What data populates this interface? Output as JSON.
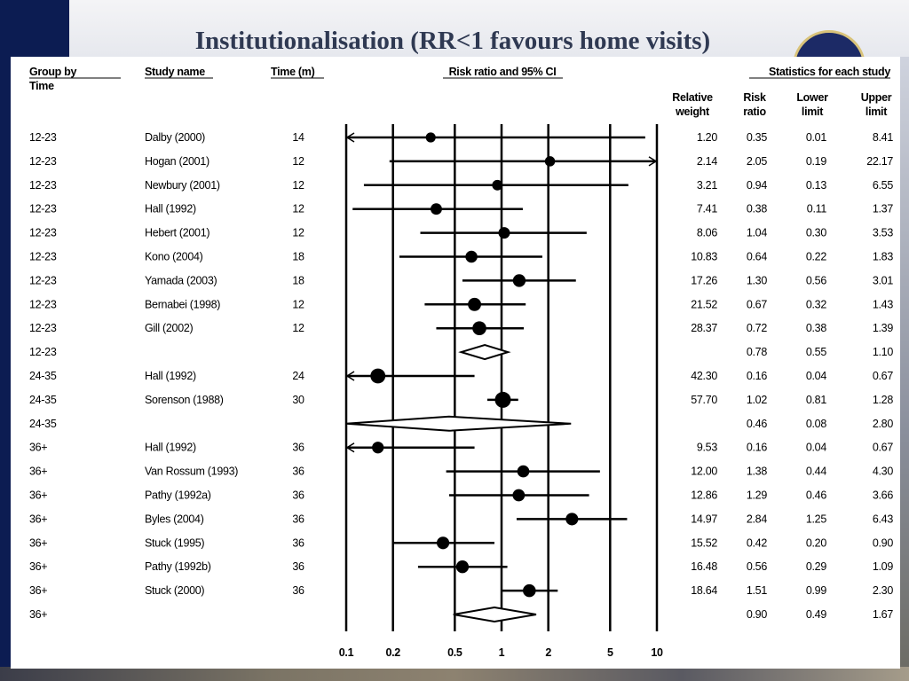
{
  "slide_title": "Institutionalisation (RR<1 favours home visits)",
  "chart_data": {
    "type": "forest",
    "title": "Institutionalisation (RR<1 favours home visits)",
    "scale": "log",
    "xlim": [
      0.1,
      10
    ],
    "x_ticks": [
      "0.1",
      "0.2",
      "0.5",
      "1",
      "2",
      "5",
      "10"
    ],
    "headers": {
      "group": "Group by",
      "group2": "Time",
      "study": "Study name",
      "time": "Time (m)",
      "plot": "Risk ratio and 95% CI",
      "stats": "Statistics for each study",
      "weight": [
        "Relative",
        "weight"
      ],
      "rr": [
        "Risk",
        "ratio"
      ],
      "lower": [
        "Lower",
        "limit"
      ],
      "upper": [
        "Upper",
        "limit"
      ]
    },
    "rows": [
      {
        "group": "12-23",
        "study": "Dalby (2000)",
        "time": "14",
        "weight": "1.20",
        "rr": 0.35,
        "lower": 0.01,
        "upper": 8.41,
        "rr_t": "0.35",
        "lo_t": "0.01",
        "up_t": "8.41",
        "type": "study"
      },
      {
        "group": "12-23",
        "study": "Hogan (2001)",
        "time": "12",
        "weight": "2.14",
        "rr": 2.05,
        "lower": 0.19,
        "upper": 22.17,
        "rr_t": "2.05",
        "lo_t": "0.19",
        "up_t": "22.17",
        "type": "study"
      },
      {
        "group": "12-23",
        "study": "Newbury (2001)",
        "time": "12",
        "weight": "3.21",
        "rr": 0.94,
        "lower": 0.13,
        "upper": 6.55,
        "rr_t": "0.94",
        "lo_t": "0.13",
        "up_t": "6.55",
        "type": "study"
      },
      {
        "group": "12-23",
        "study": "Hall (1992)",
        "time": "12",
        "weight": "7.41",
        "rr": 0.38,
        "lower": 0.11,
        "upper": 1.37,
        "rr_t": "0.38",
        "lo_t": "0.11",
        "up_t": "1.37",
        "type": "study"
      },
      {
        "group": "12-23",
        "study": "Hebert (2001)",
        "time": "12",
        "weight": "8.06",
        "rr": 1.04,
        "lower": 0.3,
        "upper": 3.53,
        "rr_t": "1.04",
        "lo_t": "0.30",
        "up_t": "3.53",
        "type": "study"
      },
      {
        "group": "12-23",
        "study": "Kono (2004)",
        "time": "18",
        "weight": "10.83",
        "rr": 0.64,
        "lower": 0.22,
        "upper": 1.83,
        "rr_t": "0.64",
        "lo_t": "0.22",
        "up_t": "1.83",
        "type": "study"
      },
      {
        "group": "12-23",
        "study": "Yamada (2003)",
        "time": "18",
        "weight": "17.26",
        "rr": 1.3,
        "lower": 0.56,
        "upper": 3.01,
        "rr_t": "1.30",
        "lo_t": "0.56",
        "up_t": "3.01",
        "type": "study"
      },
      {
        "group": "12-23",
        "study": "Bernabei (1998)",
        "time": "12",
        "weight": "21.52",
        "rr": 0.67,
        "lower": 0.32,
        "upper": 1.43,
        "rr_t": "0.67",
        "lo_t": "0.32",
        "up_t": "1.43",
        "type": "study"
      },
      {
        "group": "12-23",
        "study": "Gill (2002)",
        "time": "12",
        "weight": "28.37",
        "rr": 0.72,
        "lower": 0.38,
        "upper": 1.39,
        "rr_t": "0.72",
        "lo_t": "0.38",
        "up_t": "1.39",
        "type": "study"
      },
      {
        "group": "12-23",
        "study": "",
        "time": "",
        "weight": "",
        "rr": 0.78,
        "lower": 0.55,
        "upper": 1.1,
        "rr_t": "0.78",
        "lo_t": "0.55",
        "up_t": "1.10",
        "type": "summary"
      },
      {
        "group": "24-35",
        "study": "Hall (1992)",
        "time": "24",
        "weight": "42.30",
        "rr": 0.16,
        "lower": 0.04,
        "upper": 0.67,
        "rr_t": "0.16",
        "lo_t": "0.04",
        "up_t": "0.67",
        "type": "study"
      },
      {
        "group": "24-35",
        "study": "Sorenson (1988)",
        "time": "30",
        "weight": "57.70",
        "rr": 1.02,
        "lower": 0.81,
        "upper": 1.28,
        "rr_t": "1.02",
        "lo_t": "0.81",
        "up_t": "1.28",
        "type": "study"
      },
      {
        "group": "24-35",
        "study": "",
        "time": "",
        "weight": "",
        "rr": 0.46,
        "lower": 0.08,
        "upper": 2.8,
        "rr_t": "0.46",
        "lo_t": "0.08",
        "up_t": "2.80",
        "type": "summary"
      },
      {
        "group": "36+",
        "study": "Hall (1992)",
        "time": "36",
        "weight": "9.53",
        "rr": 0.16,
        "lower": 0.04,
        "upper": 0.67,
        "rr_t": "0.16",
        "lo_t": "0.04",
        "up_t": "0.67",
        "type": "study"
      },
      {
        "group": "36+",
        "study": "Van Rossum (1993)",
        "time": "36",
        "weight": "12.00",
        "rr": 1.38,
        "lower": 0.44,
        "upper": 4.3,
        "rr_t": "1.38",
        "lo_t": "0.44",
        "up_t": "4.30",
        "type": "study"
      },
      {
        "group": "36+",
        "study": "Pathy (1992a)",
        "time": "36",
        "weight": "12.86",
        "rr": 1.29,
        "lower": 0.46,
        "upper": 3.66,
        "rr_t": "1.29",
        "lo_t": "0.46",
        "up_t": "3.66",
        "type": "study"
      },
      {
        "group": "36+",
        "study": "Byles (2004)",
        "time": "36",
        "weight": "14.97",
        "rr": 2.84,
        "lower": 1.25,
        "upper": 6.43,
        "rr_t": "2.84",
        "lo_t": "1.25",
        "up_t": "6.43",
        "type": "study"
      },
      {
        "group": "36+",
        "study": "Stuck (1995)",
        "time": "36",
        "weight": "15.52",
        "rr": 0.42,
        "lower": 0.2,
        "upper": 0.9,
        "rr_t": "0.42",
        "lo_t": "0.20",
        "up_t": "0.90",
        "type": "study"
      },
      {
        "group": "36+",
        "study": "Pathy (1992b)",
        "time": "36",
        "weight": "16.48",
        "rr": 0.56,
        "lower": 0.29,
        "upper": 1.09,
        "rr_t": "0.56",
        "lo_t": "0.29",
        "up_t": "1.09",
        "type": "study"
      },
      {
        "group": "36+",
        "study": "Stuck (2000)",
        "time": "36",
        "weight": "18.64",
        "rr": 1.51,
        "lower": 0.99,
        "upper": 2.3,
        "rr_t": "1.51",
        "lo_t": "0.99",
        "up_t": "2.30",
        "type": "study"
      },
      {
        "group": "36+",
        "study": "",
        "time": "",
        "weight": "",
        "rr": 0.9,
        "lower": 0.49,
        "upper": 1.67,
        "rr_t": "0.90",
        "lo_t": "0.49",
        "up_t": "1.67",
        "type": "summary"
      }
    ]
  }
}
